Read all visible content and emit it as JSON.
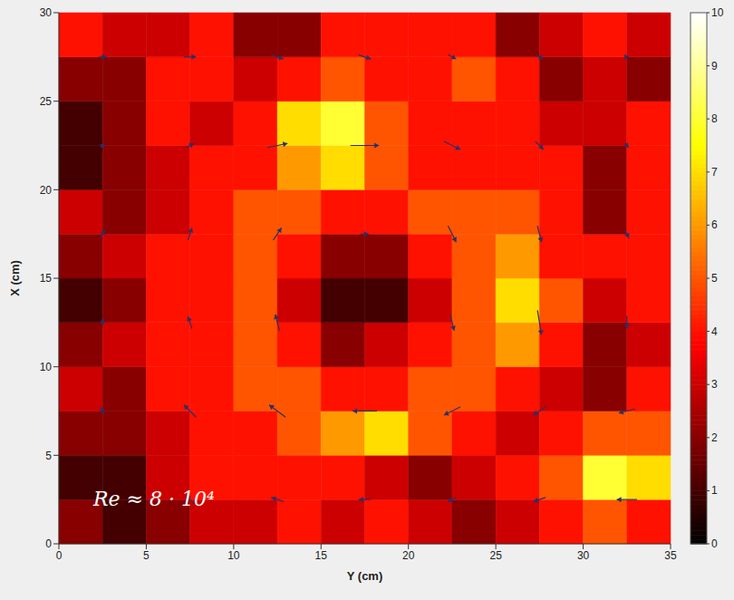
{
  "chart_data": {
    "type": "heatmap",
    "x_label": "Y (cm)",
    "y_label": "X (cm)",
    "annotation": "Re ≈ 8 · 10⁴",
    "xlim": [
      0,
      35
    ],
    "ylim": [
      0,
      30
    ],
    "xticks": [
      0,
      5,
      10,
      15,
      20,
      25,
      30,
      35
    ],
    "yticks": [
      0,
      5,
      10,
      15,
      20,
      25,
      30
    ],
    "grid": false,
    "x": [
      1.25,
      3.75,
      6.25,
      8.75,
      11.25,
      13.75,
      16.25,
      18.75,
      21.25,
      23.75,
      26.25,
      28.75,
      31.25,
      33.75
    ],
    "y": [
      1.25,
      3.75,
      6.25,
      8.75,
      11.25,
      13.75,
      16.25,
      18.75,
      21.25,
      23.75,
      26.25,
      28.75
    ],
    "cells": [
      [
        2,
        1,
        2,
        3,
        3,
        4,
        3,
        4,
        3,
        2,
        3,
        4,
        5,
        4
      ],
      [
        1,
        1,
        3,
        4,
        4,
        4,
        4,
        3,
        2,
        3,
        4,
        5,
        8,
        7
      ],
      [
        2,
        2,
        3,
        4,
        4,
        5,
        6,
        7,
        5,
        4,
        3,
        4,
        5,
        5
      ],
      [
        3,
        2,
        4,
        4,
        5,
        5,
        4,
        4,
        5,
        5,
        4,
        3,
        2,
        4
      ],
      [
        2,
        3,
        4,
        4,
        5,
        4,
        2,
        3,
        4,
        5,
        6,
        4,
        2,
        3
      ],
      [
        1,
        2,
        4,
        4,
        5,
        3,
        1,
        1,
        3,
        5,
        7,
        5,
        3,
        4
      ],
      [
        2,
        3,
        4,
        4,
        5,
        4,
        2,
        2,
        4,
        5,
        6,
        4,
        4,
        4
      ],
      [
        3,
        2,
        3,
        4,
        5,
        5,
        4,
        4,
        5,
        5,
        5,
        4,
        2,
        4
      ],
      [
        1,
        2,
        3,
        4,
        4,
        6,
        7,
        5,
        4,
        4,
        4,
        4,
        2,
        4
      ],
      [
        1,
        2,
        4,
        3,
        4,
        7,
        8,
        5,
        4,
        4,
        4,
        3,
        3,
        4
      ],
      [
        2,
        2,
        4,
        4,
        3,
        4,
        5,
        4,
        4,
        5,
        4,
        2,
        3,
        2
      ],
      [
        4,
        3,
        3,
        4,
        2,
        2,
        4,
        4,
        4,
        4,
        2,
        3,
        4,
        3
      ]
    ],
    "colorbar": {
      "range": [
        0,
        10
      ],
      "ticks": [
        0,
        1,
        2,
        3,
        4,
        5,
        6,
        7,
        8,
        9,
        10
      ]
    },
    "vectors": {
      "x": [
        2.5,
        7.5,
        12.5,
        17.5,
        22.5,
        27.5,
        32.5
      ],
      "y": [
        2.5,
        7.5,
        12.5,
        17.5,
        22.5,
        27.5
      ],
      "u": [
        [
          -1,
          -2,
          -3,
          -3,
          -2,
          -3,
          -5
        ],
        [
          -1,
          -3,
          -4,
          -6,
          -4,
          -3,
          -4
        ],
        [
          0,
          -1,
          -1,
          0,
          1,
          1,
          0
        ],
        [
          1,
          1,
          2,
          2,
          2,
          1,
          1
        ],
        [
          1,
          2,
          5,
          7,
          4,
          2,
          1
        ],
        [
          2,
          3,
          3,
          3,
          2,
          2,
          1
        ]
      ],
      "v": [
        [
          1,
          2,
          1,
          0,
          -1,
          -1,
          0
        ],
        [
          2,
          3,
          3,
          0,
          -2,
          -2,
          -1
        ],
        [
          2,
          3,
          4,
          0,
          -4,
          -6,
          -3
        ],
        [
          2,
          3,
          3,
          0,
          -4,
          -4,
          -2
        ],
        [
          1,
          1,
          1,
          0,
          -2,
          -2,
          -1
        ],
        [
          0,
          0,
          -1,
          -1,
          -1,
          -1,
          0
        ]
      ]
    }
  }
}
